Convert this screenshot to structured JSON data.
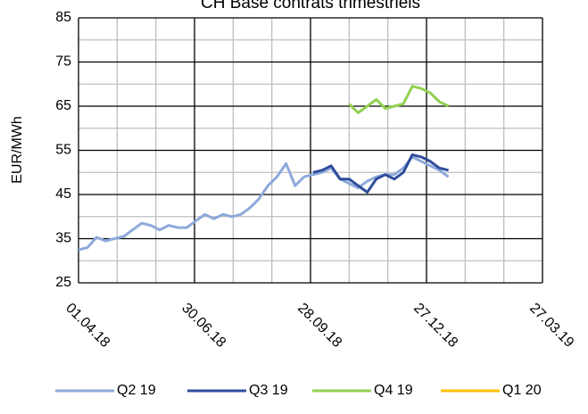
{
  "chart_data": {
    "type": "line",
    "title": "CH Base contrats trimestriels",
    "y_label": "EUR/MWh",
    "x": [
      "2018-04-01",
      "2018-04-08",
      "2018-04-15",
      "2018-04-22",
      "2018-04-29",
      "2018-05-06",
      "2018-05-13",
      "2018-05-20",
      "2018-05-27",
      "2018-06-03",
      "2018-06-10",
      "2018-06-17",
      "2018-06-24",
      "2018-07-01",
      "2018-07-08",
      "2018-07-15",
      "2018-07-22",
      "2018-07-29",
      "2018-08-05",
      "2018-08-12",
      "2018-08-19",
      "2018-08-26",
      "2018-09-02",
      "2018-09-09",
      "2018-09-16",
      "2018-09-23",
      "2018-09-30",
      "2018-10-07",
      "2018-10-14",
      "2018-10-21",
      "2018-10-28",
      "2018-11-04",
      "2018-11-11",
      "2018-11-18",
      "2018-11-25",
      "2018-12-02",
      "2018-12-09",
      "2018-12-16",
      "2018-12-23",
      "2018-12-30",
      "2019-01-06",
      "2019-01-13"
    ],
    "series": [
      {
        "name": "Q2 19",
        "color": "#8ea9db",
        "values": [
          32.5,
          33,
          35.3,
          34.5,
          35,
          35.5,
          37,
          38.5,
          38,
          37,
          38,
          37.5,
          37.5,
          39,
          40.5,
          39.5,
          40.5,
          40,
          40.5,
          42,
          44,
          47,
          49,
          52,
          47,
          49,
          49.5,
          50,
          51,
          48.5,
          47.5,
          46.5,
          48,
          49,
          49.5,
          49.5,
          51,
          53.5,
          52.5,
          51.5,
          50.5,
          49
        ]
      },
      {
        "name": "Q3 19",
        "color": "#2f4c9b",
        "values": [
          null,
          null,
          null,
          null,
          null,
          null,
          null,
          null,
          null,
          null,
          null,
          null,
          null,
          null,
          null,
          null,
          null,
          null,
          null,
          null,
          null,
          null,
          null,
          null,
          null,
          null,
          50,
          50.5,
          51.5,
          48.5,
          48.5,
          47,
          45.5,
          48.5,
          49.5,
          48.5,
          50,
          54,
          53.5,
          52.5,
          51,
          50.5
        ]
      },
      {
        "name": "Q4 19",
        "color": "#92d050",
        "values": [
          null,
          null,
          null,
          null,
          null,
          null,
          null,
          null,
          null,
          null,
          null,
          null,
          null,
          null,
          null,
          null,
          null,
          null,
          null,
          null,
          null,
          null,
          null,
          null,
          null,
          null,
          null,
          null,
          null,
          null,
          65.5,
          63.5,
          65,
          66.5,
          64.5,
          65,
          65.5,
          69.5,
          69,
          68,
          66,
          65
        ]
      },
      {
        "name": "Q1 20",
        "color": "#ffc000",
        "values": [
          null,
          null,
          null,
          null,
          null,
          null,
          null,
          null,
          null,
          null,
          null,
          null,
          null,
          null,
          null,
          null,
          null,
          null,
          null,
          null,
          null,
          null,
          null,
          null,
          null,
          null,
          null,
          null,
          null,
          null,
          null,
          null,
          null,
          null,
          null,
          null,
          null,
          null,
          null,
          null,
          null,
          null
        ]
      }
    ],
    "xlim": [
      "2018-04-01",
      "2019-03-27"
    ],
    "xticks": [
      {
        "value": "2018-04-01",
        "label": "01.04.18"
      },
      {
        "value": "2018-06-30",
        "label": "30.06.18"
      },
      {
        "value": "2018-09-28",
        "label": "28.09.18"
      },
      {
        "value": "2018-12-27",
        "label": "27.12.18"
      },
      {
        "value": "2019-03-27",
        "label": "27.03.19"
      }
    ],
    "ylim": [
      25,
      85
    ],
    "yticks": [
      25,
      35,
      45,
      55,
      65,
      75,
      85
    ],
    "grid": true,
    "legend": "bottom"
  }
}
